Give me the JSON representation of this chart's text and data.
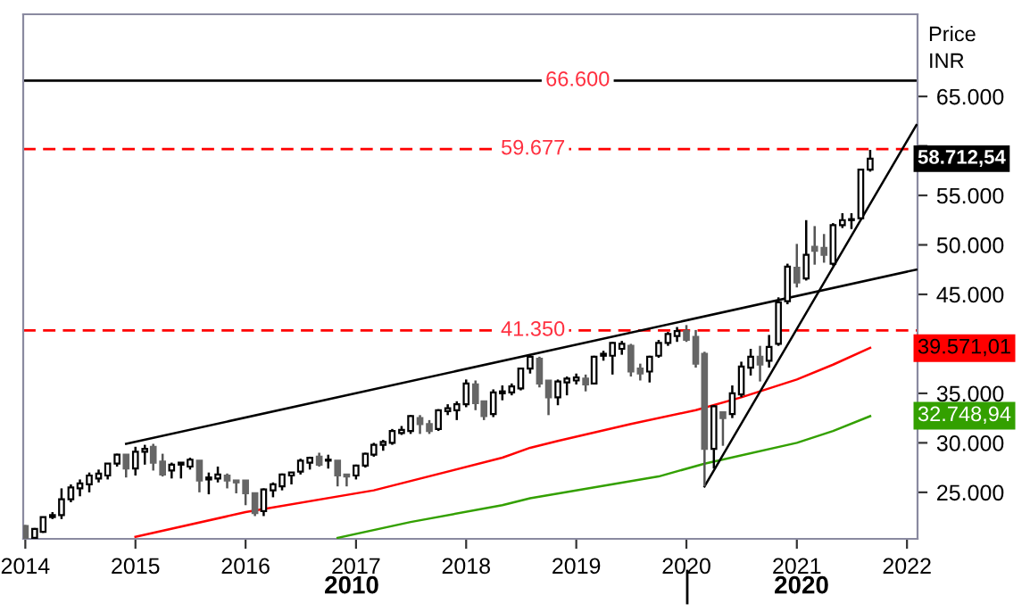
{
  "chart_data": {
    "type": "candlestick",
    "x": [
      "2014-01",
      "2014-02",
      "2014-03",
      "2014-04",
      "2014-05",
      "2014-06",
      "2014-07",
      "2014-08",
      "2014-09",
      "2014-10",
      "2014-11",
      "2014-12",
      "2015-01",
      "2015-02",
      "2015-03",
      "2015-04",
      "2015-05",
      "2015-06",
      "2015-07",
      "2015-08",
      "2015-09",
      "2015-10",
      "2015-11",
      "2015-12",
      "2016-01",
      "2016-02",
      "2016-03",
      "2016-04",
      "2016-05",
      "2016-06",
      "2016-07",
      "2016-08",
      "2016-09",
      "2016-10",
      "2016-11",
      "2016-12",
      "2017-01",
      "2017-02",
      "2017-03",
      "2017-04",
      "2017-05",
      "2017-06",
      "2017-07",
      "2017-08",
      "2017-09",
      "2017-10",
      "2017-11",
      "2017-12",
      "2018-01",
      "2018-02",
      "2018-03",
      "2018-04",
      "2018-05",
      "2018-06",
      "2018-07",
      "2018-08",
      "2018-09",
      "2018-10",
      "2018-11",
      "2018-12",
      "2019-01",
      "2019-02",
      "2019-03",
      "2019-04",
      "2019-05",
      "2019-06",
      "2019-07",
      "2019-08",
      "2019-09",
      "2019-10",
      "2019-11",
      "2019-12",
      "2020-01",
      "2020-02",
      "2020-03",
      "2020-04",
      "2020-05",
      "2020-06",
      "2020-07",
      "2020-08",
      "2020-09",
      "2020-10",
      "2020-11",
      "2020-12",
      "2021-01",
      "2021-02",
      "2021-03",
      "2021-04",
      "2021-05",
      "2021-06",
      "2021-07",
      "2021-08",
      "2021-09"
    ],
    "ohlc": [
      [
        21600,
        21700,
        20300,
        20400
      ],
      [
        20400,
        21400,
        20300,
        21300
      ],
      [
        21000,
        22500,
        20900,
        22500
      ],
      [
        22500,
        23000,
        22300,
        22700
      ],
      [
        22700,
        25400,
        22300,
        24300
      ],
      [
        24300,
        25800,
        24000,
        25500
      ],
      [
        25400,
        26300,
        24600,
        25900
      ],
      [
        25800,
        27000,
        25000,
        26700
      ],
      [
        26400,
        27300,
        26000,
        26900
      ],
      [
        26700,
        27900,
        26300,
        27900
      ],
      [
        27900,
        28900,
        27600,
        28800
      ],
      [
        28800,
        28800,
        26500,
        27400
      ],
      [
        27400,
        29600,
        26700,
        29100
      ],
      [
        29100,
        29800,
        27800,
        29400
      ],
      [
        29600,
        29900,
        27200,
        28000
      ],
      [
        28100,
        28900,
        26600,
        26800
      ],
      [
        27200,
        28000,
        26400,
        27800
      ],
      [
        27800,
        28000,
        26400,
        28000
      ],
      [
        27600,
        28500,
        27300,
        28300
      ],
      [
        28200,
        28200,
        25000,
        26200
      ],
      [
        26300,
        27000,
        24800,
        26500
      ],
      [
        26400,
        27600,
        26000,
        26800
      ],
      [
        26700,
        26900,
        25400,
        26200
      ],
      [
        26200,
        26200,
        24900,
        26000
      ],
      [
        26200,
        26200,
        23700,
        24900
      ],
      [
        24900,
        24900,
        22600,
        22900
      ],
      [
        23100,
        25400,
        22600,
        25300
      ],
      [
        25200,
        26000,
        24500,
        25800
      ],
      [
        25600,
        26900,
        25200,
        26800
      ],
      [
        26700,
        27000,
        25800,
        27000
      ],
      [
        27100,
        28400,
        26800,
        28200
      ],
      [
        28000,
        28600,
        27300,
        28500
      ],
      [
        28600,
        29000,
        27600,
        27800
      ],
      [
        28200,
        28800,
        27400,
        28300
      ],
      [
        28200,
        28200,
        25600,
        26700
      ],
      [
        26800,
        26800,
        25600,
        26600
      ],
      [
        26700,
        27800,
        26300,
        27700
      ],
      [
        27700,
        29000,
        27500,
        28900
      ],
      [
        28800,
        30000,
        28600,
        29800
      ],
      [
        29800,
        30300,
        29200,
        30100
      ],
      [
        30000,
        31400,
        29800,
        31200
      ],
      [
        31000,
        31700,
        30800,
        31300
      ],
      [
        31200,
        32800,
        30900,
        32700
      ],
      [
        32500,
        32800,
        30900,
        31900
      ],
      [
        31900,
        32300,
        30900,
        31200
      ],
      [
        31400,
        33400,
        31200,
        33300
      ],
      [
        33200,
        33900,
        32800,
        33500
      ],
      [
        33300,
        34200,
        32300,
        33900
      ],
      [
        33900,
        36400,
        33600,
        36000
      ],
      [
        35900,
        36300,
        33300,
        34000
      ],
      [
        34200,
        34200,
        32300,
        32700
      ],
      [
        32900,
        35400,
        32600,
        35100
      ],
      [
        35000,
        35800,
        34300,
        35200
      ],
      [
        35100,
        36000,
        34800,
        35700
      ],
      [
        35500,
        37600,
        35300,
        37500
      ],
      [
        37500,
        38900,
        37000,
        38700
      ],
      [
        38500,
        38700,
        35600,
        36000
      ],
      [
        36300,
        36300,
        32800,
        34600
      ],
      [
        34600,
        36400,
        33800,
        36200
      ],
      [
        36100,
        36700,
        34800,
        36500
      ],
      [
        36300,
        37000,
        35900,
        36600
      ],
      [
        36500,
        36900,
        35200,
        35900
      ],
      [
        36000,
        38800,
        35900,
        38700
      ],
      [
        38800,
        39300,
        38300,
        39000
      ],
      [
        38800,
        40200,
        36900,
        40100
      ],
      [
        39500,
        40300,
        38900,
        40000
      ],
      [
        39800,
        40000,
        36700,
        37200
      ],
      [
        37500,
        38000,
        36300,
        37000
      ],
      [
        37200,
        38800,
        36100,
        38700
      ],
      [
        38800,
        40400,
        38600,
        40100
      ],
      [
        40100,
        41200,
        39800,
        41000
      ],
      [
        40800,
        41700,
        40200,
        41300
      ],
      [
        41300,
        41900,
        40200,
        40400
      ],
      [
        40700,
        41400,
        37600,
        38000
      ],
      [
        39000,
        39200,
        25600,
        29400
      ],
      [
        29400,
        33800,
        27400,
        33700
      ],
      [
        33100,
        33100,
        29700,
        32500
      ],
      [
        32900,
        35800,
        32500,
        35000
      ],
      [
        34900,
        38200,
        34600,
        37700
      ],
      [
        37600,
        39500,
        36800,
        38700
      ],
      [
        38700,
        39800,
        36200,
        37900
      ],
      [
        38300,
        40900,
        37600,
        39700
      ],
      [
        40000,
        44700,
        39800,
        44200
      ],
      [
        44300,
        48100,
        44000,
        47800
      ],
      [
        47700,
        50100,
        45700,
        46200
      ],
      [
        46600,
        52500,
        46400,
        49000
      ],
      [
        49800,
        51900,
        48000,
        49400
      ],
      [
        49700,
        51100,
        48200,
        49000
      ],
      [
        48100,
        52200,
        47900,
        52000
      ],
      [
        52000,
        53200,
        51700,
        52500
      ],
      [
        52500,
        53200,
        51600,
        52600
      ],
      [
        52700,
        57700,
        52500,
        57600
      ],
      [
        57600,
        59600,
        57400,
        58712.54
      ]
    ],
    "value_labels": [
      null,
      null,
      null,
      null,
      null,
      null,
      null,
      null,
      null,
      null,
      null,
      null,
      null,
      null,
      null,
      null,
      null,
      null,
      null,
      null,
      null,
      null,
      null,
      null,
      null,
      null,
      null,
      null,
      null,
      null,
      null,
      null,
      null,
      null,
      null,
      null,
      null,
      null,
      null,
      null,
      null,
      null,
      null,
      null,
      null,
      null,
      null,
      null,
      null,
      null,
      null,
      null,
      null,
      null,
      null,
      null,
      null,
      null,
      null,
      null,
      null,
      null,
      null,
      null,
      null,
      null,
      null,
      null,
      null,
      null,
      null,
      null,
      null,
      null,
      null,
      null,
      null,
      null,
      null,
      null,
      null,
      null,
      null,
      null,
      null,
      null,
      null,
      null,
      null,
      null,
      null,
      null,
      "58.712,54"
    ],
    "series": [
      {
        "type": "line",
        "color": "#ff0000",
        "x": [
          "2015-01",
          "2016-01",
          "2017-03",
          "2018-05",
          "2018-08",
          "2018-11",
          "2019-07",
          "2020-02",
          "2020-07",
          "2021-01",
          "2021-05",
          "2021-09"
        ],
        "values": [
          20500,
          23000,
          25200,
          28500,
          29500,
          30200,
          31900,
          33300,
          34600,
          36400,
          37900,
          39600
        ]
      },
      {
        "type": "line",
        "color": "#33a000",
        "x": [
          "2016-11",
          "2017-07",
          "2018-05",
          "2018-08",
          "2019-10",
          "2020-03",
          "2021-01",
          "2021-05",
          "2021-09"
        ],
        "values": [
          20400,
          22000,
          23700,
          24400,
          26600,
          27900,
          30000,
          31200,
          32700
        ]
      },
      {
        "type": "line",
        "color": "#000000",
        "x": [
          "2014-12",
          "2022-02"
        ],
        "values": [
          29900,
          47500
        ]
      },
      {
        "type": "line",
        "color": "#000000",
        "x": [
          "2020-03",
          "2022-02"
        ],
        "values": [
          25600,
          62100
        ]
      }
    ],
    "ref_lines": [
      {
        "axis": "y",
        "value": 66600,
        "label": "66.600",
        "color": "#000000",
        "line_style": "solid"
      },
      {
        "axis": "y",
        "value": 59677,
        "label": "59.677",
        "color": "#ff0000",
        "line_style": "dashed"
      },
      {
        "axis": "y",
        "value": 41350,
        "label": "41.350",
        "color": "#ff0000",
        "line_style": "dashed"
      }
    ],
    "xlim": [
      "2013-12-25",
      "2022-02-05"
    ],
    "xticks": [
      "2014",
      "2015",
      "2016",
      "2017",
      "2018",
      "2019",
      "2020",
      "2021",
      "2022"
    ],
    "ylim": [
      20300,
      73300
    ],
    "yticks": [
      {
        "value": 25000,
        "label": "25.000"
      },
      {
        "value": 30000,
        "label": "30.000"
      },
      {
        "value": 35000,
        "label": "35.000"
      },
      {
        "value": 40000,
        "label": null
      },
      {
        "value": 45000,
        "label": "45.000"
      },
      {
        "value": 50000,
        "label": "50.000"
      },
      {
        "value": 55000,
        "label": "55.000"
      },
      {
        "value": 60000,
        "label": null
      },
      {
        "value": 65000,
        "label": "65.000"
      }
    ],
    "annotations": [
      "Price",
      "INR",
      "2010",
      "2020",
      {
        "text": "39.571,01",
        "x": "2021-09",
        "y": 39571.01
      },
      {
        "text": "32.748,94",
        "x": "2021-09",
        "y": 32748.94
      }
    ],
    "grid": false,
    "legend": false
  }
}
